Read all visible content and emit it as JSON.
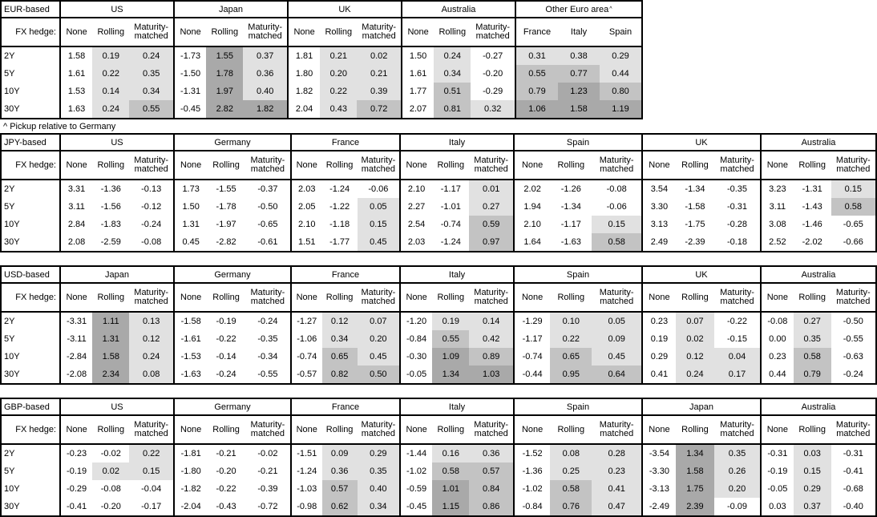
{
  "labels": {
    "fx_hedge": "FX hedge:",
    "footnote": "^ Pickup relative to Germany"
  },
  "colors": {
    "border": "#000000",
    "cell_white": "#ffffff",
    "shade_low": "#e1e1e1",
    "shade_mid": "#c3c3c3",
    "shade_high": "#a9a9a9"
  },
  "shading_rule": "Hedged-pickup cells shaded by value: negative = white, 0 to 0.5 = light gray, 0.5 to 1.0 = medium gray, 1.0+ = dark gray; 'None' columns unshaded",
  "chart_data": [
    {
      "type": "table",
      "base": "EUR-based",
      "row_labels": [
        "2Y",
        "5Y",
        "10Y",
        "30Y"
      ],
      "footnote": "^ Pickup relative to Germany",
      "groups": [
        {
          "name": "US",
          "header_type": "hedge",
          "columns": [
            "None",
            "Rolling",
            "Maturity-matched"
          ],
          "values": [
            [
              "1.58",
              "0.19",
              "0.24"
            ],
            [
              "1.61",
              "0.22",
              "0.35"
            ],
            [
              "1.53",
              "0.14",
              "0.34"
            ],
            [
              "1.63",
              "0.24",
              "0.55"
            ]
          ]
        },
        {
          "name": "Japan",
          "header_type": "hedge",
          "columns": [
            "None",
            "Rolling",
            "Maturity-matched"
          ],
          "values": [
            [
              "-1.73",
              "1.55",
              "0.37"
            ],
            [
              "-1.50",
              "1.78",
              "0.36"
            ],
            [
              "-1.31",
              "1.97",
              "0.40"
            ],
            [
              "-0.45",
              "2.82",
              "1.82"
            ]
          ]
        },
        {
          "name": "UK",
          "header_type": "hedge",
          "columns": [
            "None",
            "Rolling",
            "Maturity-matched"
          ],
          "values": [
            [
              "1.81",
              "0.21",
              "0.02"
            ],
            [
              "1.80",
              "0.20",
              "0.21"
            ],
            [
              "1.82",
              "0.22",
              "0.39"
            ],
            [
              "2.04",
              "0.43",
              "0.72"
            ]
          ]
        },
        {
          "name": "Australia",
          "header_type": "hedge",
          "columns": [
            "None",
            "Rolling",
            "Maturity-matched"
          ],
          "values": [
            [
              "1.50",
              "0.24",
              "-0.27"
            ],
            [
              "1.61",
              "0.34",
              "-0.20"
            ],
            [
              "1.77",
              "0.51",
              "-0.29"
            ],
            [
              "2.07",
              "0.81",
              "0.32"
            ]
          ]
        },
        {
          "name": "Other Euro area",
          "sup": "^",
          "header_type": "country",
          "columns": [
            "France",
            "Italy",
            "Spain"
          ],
          "values": [
            [
              "0.31",
              "0.38",
              "0.29"
            ],
            [
              "0.55",
              "0.77",
              "0.44"
            ],
            [
              "0.79",
              "1.23",
              "0.80"
            ],
            [
              "1.06",
              "1.58",
              "1.19"
            ]
          ]
        }
      ]
    },
    {
      "type": "table",
      "base": "JPY-based",
      "row_labels": [
        "2Y",
        "5Y",
        "10Y",
        "30Y"
      ],
      "groups": [
        {
          "name": "US",
          "header_type": "hedge",
          "columns": [
            "None",
            "Rolling",
            "Maturity-matched"
          ],
          "values": [
            [
              "3.31",
              "-1.36",
              "-0.13"
            ],
            [
              "3.11",
              "-1.56",
              "-0.12"
            ],
            [
              "2.84",
              "-1.83",
              "-0.24"
            ],
            [
              "2.08",
              "-2.59",
              "-0.08"
            ]
          ]
        },
        {
          "name": "Germany",
          "header_type": "hedge",
          "columns": [
            "None",
            "Rolling",
            "Maturity-matched"
          ],
          "values": [
            [
              "1.73",
              "-1.55",
              "-0.37"
            ],
            [
              "1.50",
              "-1.78",
              "-0.50"
            ],
            [
              "1.31",
              "-1.97",
              "-0.65"
            ],
            [
              "0.45",
              "-2.82",
              "-0.61"
            ]
          ]
        },
        {
          "name": "France",
          "header_type": "hedge",
          "columns": [
            "None",
            "Rolling",
            "Maturity-matched"
          ],
          "values": [
            [
              "2.03",
              "-1.24",
              "-0.06"
            ],
            [
              "2.05",
              "-1.22",
              "0.05"
            ],
            [
              "2.10",
              "-1.18",
              "0.15"
            ],
            [
              "1.51",
              "-1.77",
              "0.45"
            ]
          ]
        },
        {
          "name": "Italy",
          "header_type": "hedge",
          "columns": [
            "None",
            "Rolling",
            "Maturity-matched"
          ],
          "values": [
            [
              "2.10",
              "-1.17",
              "0.01"
            ],
            [
              "2.27",
              "-1.01",
              "0.27"
            ],
            [
              "2.54",
              "-0.74",
              "0.59"
            ],
            [
              "2.03",
              "-1.24",
              "0.97"
            ]
          ]
        },
        {
          "name": "Spain",
          "header_type": "hedge",
          "columns": [
            "None",
            "Rolling",
            "Maturity-matched"
          ],
          "values": [
            [
              "2.02",
              "-1.26",
              "-0.08"
            ],
            [
              "1.94",
              "-1.34",
              "-0.06"
            ],
            [
              "2.10",
              "-1.17",
              "0.15"
            ],
            [
              "1.64",
              "-1.63",
              "0.58"
            ]
          ]
        },
        {
          "name": "UK",
          "header_type": "hedge",
          "columns": [
            "None",
            "Rolling",
            "Maturity-matched"
          ],
          "values": [
            [
              "3.54",
              "-1.34",
              "-0.35"
            ],
            [
              "3.30",
              "-1.58",
              "-0.31"
            ],
            [
              "3.13",
              "-1.75",
              "-0.28"
            ],
            [
              "2.49",
              "-2.39",
              "-0.18"
            ]
          ]
        },
        {
          "name": "Australia",
          "header_type": "hedge",
          "columns": [
            "None",
            "Rolling",
            "Maturity-matched"
          ],
          "values": [
            [
              "3.23",
              "-1.31",
              "0.15"
            ],
            [
              "3.11",
              "-1.43",
              "0.58"
            ],
            [
              "3.08",
              "-1.46",
              "-0.65"
            ],
            [
              "2.52",
              "-2.02",
              "-0.66"
            ]
          ]
        }
      ]
    },
    {
      "type": "table",
      "base": "USD-based",
      "row_labels": [
        "2Y",
        "5Y",
        "10Y",
        "30Y"
      ],
      "groups": [
        {
          "name": "Japan",
          "header_type": "hedge",
          "columns": [
            "None",
            "Rolling",
            "Maturity-matched"
          ],
          "values": [
            [
              "-3.31",
              "1.11",
              "0.13"
            ],
            [
              "-3.11",
              "1.31",
              "0.12"
            ],
            [
              "-2.84",
              "1.58",
              "0.24"
            ],
            [
              "-2.08",
              "2.34",
              "0.08"
            ]
          ]
        },
        {
          "name": "Germany",
          "header_type": "hedge",
          "columns": [
            "None",
            "Rolling",
            "Maturity-matched"
          ],
          "values": [
            [
              "-1.58",
              "-0.19",
              "-0.24"
            ],
            [
              "-1.61",
              "-0.22",
              "-0.35"
            ],
            [
              "-1.53",
              "-0.14",
              "-0.34"
            ],
            [
              "-1.63",
              "-0.24",
              "-0.55"
            ]
          ]
        },
        {
          "name": "France",
          "header_type": "hedge",
          "columns": [
            "None",
            "Rolling",
            "Maturity-matched"
          ],
          "values": [
            [
              "-1.27",
              "0.12",
              "0.07"
            ],
            [
              "-1.06",
              "0.34",
              "0.20"
            ],
            [
              "-0.74",
              "0.65",
              "0.45"
            ],
            [
              "-0.57",
              "0.82",
              "0.50"
            ]
          ]
        },
        {
          "name": "Italy",
          "header_type": "hedge",
          "columns": [
            "None",
            "Rolling",
            "Maturity-matched"
          ],
          "values": [
            [
              "-1.20",
              "0.19",
              "0.14"
            ],
            [
              "-0.84",
              "0.55",
              "0.42"
            ],
            [
              "-0.30",
              "1.09",
              "0.89"
            ],
            [
              "-0.05",
              "1.34",
              "1.03"
            ]
          ]
        },
        {
          "name": "Spain",
          "header_type": "hedge",
          "columns": [
            "None",
            "Rolling",
            "Maturity-matched"
          ],
          "values": [
            [
              "-1.29",
              "0.10",
              "0.05"
            ],
            [
              "-1.17",
              "0.22",
              "0.09"
            ],
            [
              "-0.74",
              "0.65",
              "0.45"
            ],
            [
              "-0.44",
              "0.95",
              "0.64"
            ]
          ]
        },
        {
          "name": "UK",
          "header_type": "hedge",
          "columns": [
            "None",
            "Rolling",
            "Maturity-matched"
          ],
          "values": [
            [
              "0.23",
              "0.07",
              "-0.22"
            ],
            [
              "0.19",
              "0.02",
              "-0.15"
            ],
            [
              "0.29",
              "0.12",
              "0.04"
            ],
            [
              "0.41",
              "0.24",
              "0.17"
            ]
          ]
        },
        {
          "name": "Australia",
          "header_type": "hedge",
          "columns": [
            "None",
            "Rolling",
            "Maturity-matched"
          ],
          "values": [
            [
              "-0.08",
              "0.27",
              "-0.50"
            ],
            [
              "0.00",
              "0.35",
              "-0.55"
            ],
            [
              "0.23",
              "0.58",
              "-0.63"
            ],
            [
              "0.44",
              "0.79",
              "-0.24"
            ]
          ]
        }
      ]
    },
    {
      "type": "table",
      "base": "GBP-based",
      "row_labels": [
        "2Y",
        "5Y",
        "10Y",
        "30Y"
      ],
      "groups": [
        {
          "name": "US",
          "header_type": "hedge",
          "columns": [
            "None",
            "Rolling",
            "Maturity-matched"
          ],
          "values": [
            [
              "-0.23",
              "-0.02",
              "0.22"
            ],
            [
              "-0.19",
              "0.02",
              "0.15"
            ],
            [
              "-0.29",
              "-0.08",
              "-0.04"
            ],
            [
              "-0.41",
              "-0.20",
              "-0.17"
            ]
          ]
        },
        {
          "name": "Germany",
          "header_type": "hedge",
          "columns": [
            "None",
            "Rolling",
            "Maturity-matched"
          ],
          "values": [
            [
              "-1.81",
              "-0.21",
              "-0.02"
            ],
            [
              "-1.80",
              "-0.20",
              "-0.21"
            ],
            [
              "-1.82",
              "-0.22",
              "-0.39"
            ],
            [
              "-2.04",
              "-0.43",
              "-0.72"
            ]
          ]
        },
        {
          "name": "France",
          "header_type": "hedge",
          "columns": [
            "None",
            "Rolling",
            "Maturity-matched"
          ],
          "values": [
            [
              "-1.51",
              "0.09",
              "0.29"
            ],
            [
              "-1.24",
              "0.36",
              "0.35"
            ],
            [
              "-1.03",
              "0.57",
              "0.40"
            ],
            [
              "-0.98",
              "0.62",
              "0.34"
            ]
          ]
        },
        {
          "name": "Italy",
          "header_type": "hedge",
          "columns": [
            "None",
            "Rolling",
            "Maturity-matched"
          ],
          "values": [
            [
              "-1.44",
              "0.16",
              "0.36"
            ],
            [
              "-1.02",
              "0.58",
              "0.57"
            ],
            [
              "-0.59",
              "1.01",
              "0.84"
            ],
            [
              "-0.45",
              "1.15",
              "0.86"
            ]
          ]
        },
        {
          "name": "Spain",
          "header_type": "hedge",
          "columns": [
            "None",
            "Rolling",
            "Maturity-matched"
          ],
          "values": [
            [
              "-1.52",
              "0.08",
              "0.28"
            ],
            [
              "-1.36",
              "0.25",
              "0.23"
            ],
            [
              "-1.02",
              "0.58",
              "0.41"
            ],
            [
              "-0.84",
              "0.76",
              "0.47"
            ]
          ]
        },
        {
          "name": "Japan",
          "header_type": "hedge",
          "columns": [
            "None",
            "Rolling",
            "Maturity-matched"
          ],
          "values": [
            [
              "-3.54",
              "1.34",
              "0.35"
            ],
            [
              "-3.30",
              "1.58",
              "0.26"
            ],
            [
              "-3.13",
              "1.75",
              "0.20"
            ],
            [
              "-2.49",
              "2.39",
              "-0.09"
            ]
          ]
        },
        {
          "name": "Australia",
          "header_type": "hedge",
          "columns": [
            "None",
            "Rolling",
            "Maturity-matched"
          ],
          "values": [
            [
              "-0.31",
              "0.03",
              "-0.31"
            ],
            [
              "-0.19",
              "0.15",
              "-0.41"
            ],
            [
              "-0.05",
              "0.29",
              "-0.68"
            ],
            [
              "0.03",
              "0.37",
              "-0.40"
            ]
          ]
        }
      ]
    }
  ]
}
